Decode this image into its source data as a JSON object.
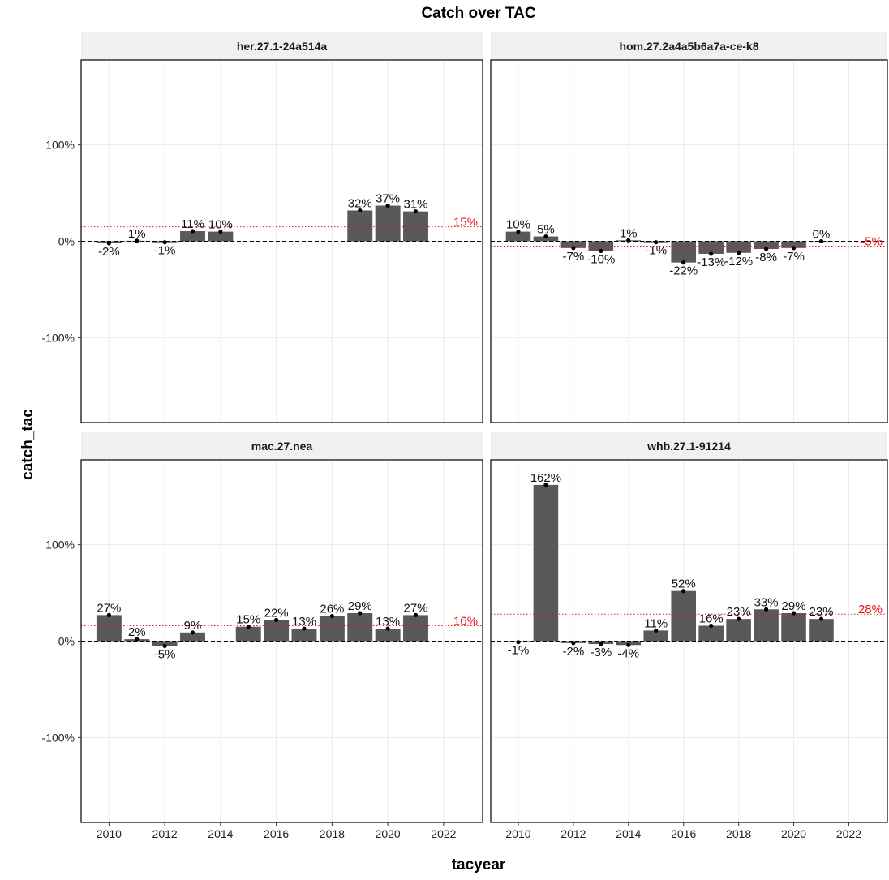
{
  "chart_data": {
    "type": "bar",
    "title": "Catch over TAC",
    "xlabel": "tacyear",
    "ylabel": "catch_tac",
    "x_ticks": [
      2010,
      2012,
      2014,
      2016,
      2018,
      2020,
      2022
    ],
    "xlim": [
      2009,
      2023.4
    ],
    "y_ticks": [
      -100,
      0,
      100
    ],
    "y_tick_labels": [
      "-100%",
      "0%",
      "100%"
    ],
    "ylim": [
      -188,
      188
    ],
    "grid": true,
    "panels": [
      {
        "name": "her.27.1-24a514a",
        "mean": 15,
        "mean_label": "15%",
        "data": [
          {
            "x": 2010,
            "y": -2,
            "label": "-2%"
          },
          {
            "x": 2011,
            "y": 0.5,
            "label": "1%"
          },
          {
            "x": 2012,
            "y": -1,
            "label": "-1%"
          },
          {
            "x": 2013,
            "y": 10.5,
            "label": "11%"
          },
          {
            "x": 2014,
            "y": 10,
            "label": "10%"
          },
          {
            "x": 2019,
            "y": 32,
            "label": "32%"
          },
          {
            "x": 2020,
            "y": 37,
            "label": "37%"
          },
          {
            "x": 2021,
            "y": 31,
            "label": "31%"
          }
        ]
      },
      {
        "name": "hom.27.2a4a5b6a7a-ce-k8",
        "mean": -5,
        "mean_label": "-5%",
        "data": [
          {
            "x": 2010,
            "y": 10,
            "label": "10%"
          },
          {
            "x": 2011,
            "y": 5,
            "label": "5%"
          },
          {
            "x": 2012,
            "y": -7,
            "label": "-7%"
          },
          {
            "x": 2013,
            "y": -10,
            "label": "-10%"
          },
          {
            "x": 2014,
            "y": 1,
            "label": "1%"
          },
          {
            "x": 2015,
            "y": -1,
            "label": "-1%"
          },
          {
            "x": 2016,
            "y": -22,
            "label": "-22%"
          },
          {
            "x": 2017,
            "y": -13,
            "label": "-13%"
          },
          {
            "x": 2018,
            "y": -12,
            "label": "-12%"
          },
          {
            "x": 2019,
            "y": -8,
            "label": "-8%"
          },
          {
            "x": 2020,
            "y": -7,
            "label": "-7%"
          },
          {
            "x": 2021,
            "y": 0,
            "label": "0%"
          }
        ]
      },
      {
        "name": "mac.27.nea",
        "mean": 16,
        "mean_label": "16%",
        "data": [
          {
            "x": 2010,
            "y": 27,
            "label": "27%"
          },
          {
            "x": 2011,
            "y": 2,
            "label": "2%"
          },
          {
            "x": 2012,
            "y": -5,
            "label": "-5%"
          },
          {
            "x": 2013,
            "y": 9,
            "label": "9%"
          },
          {
            "x": 2015,
            "y": 15,
            "label": "15%"
          },
          {
            "x": 2016,
            "y": 22,
            "label": "22%"
          },
          {
            "x": 2017,
            "y": 13,
            "label": "13%"
          },
          {
            "x": 2018,
            "y": 26,
            "label": "26%"
          },
          {
            "x": 2019,
            "y": 29,
            "label": "29%"
          },
          {
            "x": 2020,
            "y": 13,
            "label": "13%"
          },
          {
            "x": 2021,
            "y": 27,
            "label": "27%"
          }
        ]
      },
      {
        "name": "whb.27.1-91214",
        "mean": 28,
        "mean_label": "28%",
        "data": [
          {
            "x": 2010,
            "y": -1,
            "label": "-1%"
          },
          {
            "x": 2011,
            "y": 162,
            "label": "162%"
          },
          {
            "x": 2012,
            "y": -2,
            "label": "-2%"
          },
          {
            "x": 2013,
            "y": -3,
            "label": "-3%"
          },
          {
            "x": 2014,
            "y": -4,
            "label": "-4%"
          },
          {
            "x": 2015,
            "y": 11,
            "label": "11%"
          },
          {
            "x": 2016,
            "y": 52,
            "label": "52%"
          },
          {
            "x": 2017,
            "y": 16,
            "label": "16%"
          },
          {
            "x": 2018,
            "y": 23,
            "label": "23%"
          },
          {
            "x": 2019,
            "y": 33,
            "label": "33%"
          },
          {
            "x": 2020,
            "y": 29,
            "label": "29%"
          },
          {
            "x": 2021,
            "y": 23,
            "label": "23%"
          }
        ]
      }
    ]
  }
}
